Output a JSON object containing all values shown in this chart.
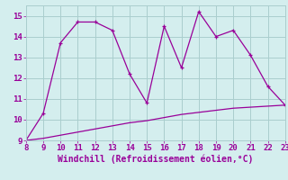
{
  "xlabel": "Windchill (Refroidissement éolien,°C)",
  "x_main": [
    8,
    9,
    10,
    11,
    12,
    13,
    14,
    15,
    16,
    17,
    18,
    19,
    20,
    21,
    22,
    23
  ],
  "y_main": [
    9.0,
    10.3,
    13.7,
    14.7,
    14.7,
    14.3,
    12.2,
    10.8,
    14.5,
    12.5,
    15.2,
    14.0,
    14.3,
    13.1,
    11.6,
    10.7
  ],
  "x_line2": [
    8,
    9,
    10,
    11,
    12,
    13,
    14,
    15,
    16,
    17,
    18,
    19,
    20,
    21,
    22,
    23
  ],
  "y_line2": [
    9.0,
    9.1,
    9.25,
    9.4,
    9.55,
    9.7,
    9.85,
    9.95,
    10.1,
    10.25,
    10.35,
    10.45,
    10.55,
    10.6,
    10.65,
    10.7
  ],
  "line_color": "#990099",
  "bg_color": "#d4eeee",
  "grid_color": "#aacece",
  "xlim": [
    8,
    23
  ],
  "ylim": [
    9,
    15.5
  ],
  "xticks": [
    8,
    9,
    10,
    11,
    12,
    13,
    14,
    15,
    16,
    17,
    18,
    19,
    20,
    21,
    22,
    23
  ],
  "yticks": [
    9,
    10,
    11,
    12,
    13,
    14,
    15
  ],
  "tick_fontsize": 6.5,
  "xlabel_fontsize": 7.0
}
